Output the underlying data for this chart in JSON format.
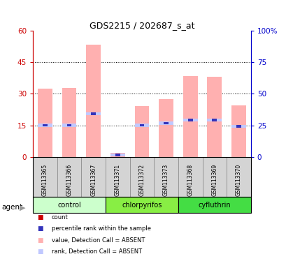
{
  "title": "GDS2215 / 202687_s_at",
  "samples": [
    "GSM113365",
    "GSM113366",
    "GSM113367",
    "GSM113371",
    "GSM113372",
    "GSM113373",
    "GSM113368",
    "GSM113369",
    "GSM113370"
  ],
  "groups": [
    {
      "label": "control",
      "color": "#ccffcc",
      "start": 0,
      "end": 3
    },
    {
      "label": "chlorpyrifos",
      "color": "#88ee44",
      "start": 3,
      "end": 6
    },
    {
      "label": "cyfluthrin",
      "color": "#44dd44",
      "start": 6,
      "end": 9
    }
  ],
  "bar_top_absent": [
    32.5,
    32.8,
    53.5,
    2.0,
    24.0,
    27.5,
    38.5,
    38.0,
    24.5
  ],
  "rank_absent": [
    15.0,
    15.0,
    20.5,
    0.8,
    15.0,
    16.0,
    17.5,
    17.5,
    14.5
  ],
  "percentile_rank": [
    15.0,
    15.0,
    20.5,
    0.8,
    15.0,
    16.0,
    17.5,
    17.5,
    14.5
  ],
  "ylim_left": [
    0,
    60
  ],
  "ylim_right": [
    0,
    100
  ],
  "yticks_left": [
    0,
    15,
    30,
    45,
    60
  ],
  "yticks_right": [
    0,
    25,
    50,
    75,
    100
  ],
  "ytick_labels_right": [
    "0",
    "25",
    "50",
    "75",
    "100%"
  ],
  "bar_color_absent": "#ffb0b0",
  "rank_absent_color": "#c0c8ff",
  "percentile_color": "#3333bb",
  "axis_left_color": "#cc0000",
  "axis_right_color": "#0000cc",
  "legend_items": [
    {
      "color": "#cc0000",
      "label": "count"
    },
    {
      "color": "#3333bb",
      "label": "percentile rank within the sample"
    },
    {
      "color": "#ffb0b0",
      "label": "value, Detection Call = ABSENT"
    },
    {
      "color": "#c0c8ff",
      "label": "rank, Detection Call = ABSENT"
    }
  ],
  "bar_width": 0.6
}
